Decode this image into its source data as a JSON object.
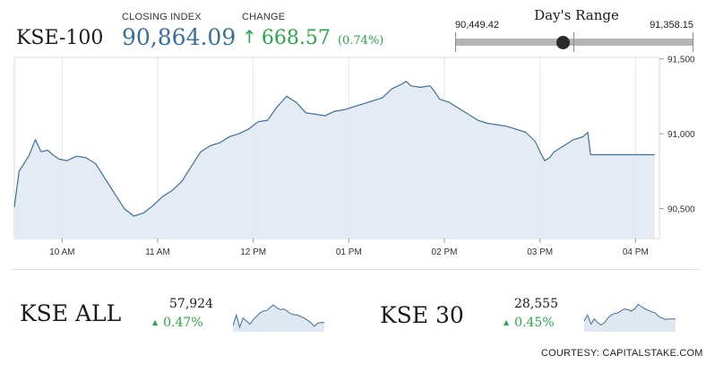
{
  "header": {
    "index_name": "KSE-100",
    "closing_label": "CLOSING INDEX",
    "closing_value": "90,864.09",
    "change_label": "CHANGE",
    "change_arrow": "↑",
    "change_value": "668.57",
    "change_pct": "(0.74%)"
  },
  "days_range": {
    "title": "Day's Range",
    "low_label": "90,449.42",
    "high_label": "91,358.15",
    "low": 90449.42,
    "high": 91358.15,
    "current": 90864.09
  },
  "colors": {
    "line": "#3f6f98",
    "fill": "#dfe8f1",
    "up": "#2aa548",
    "index_blue": "#3a6f9c"
  },
  "chart_data": [
    {
      "type": "area",
      "title": "KSE-100",
      "xlabel": "",
      "ylabel": "",
      "x_tick_labels": [
        "10 AM",
        "11 AM",
        "12 PM",
        "01 PM",
        "02 PM",
        "03 PM",
        "04 PM"
      ],
      "y_tick_labels": [
        "91,500",
        "91,000",
        "90,500"
      ],
      "y_ticks": [
        91500,
        91000,
        90500
      ],
      "ylim": [
        90300,
        91510
      ],
      "xlim_hours": [
        9.5,
        16.25
      ],
      "grid": "vertical",
      "series": [
        {
          "points": [
            [
              9.5,
              90510
            ],
            [
              9.55,
              90750
            ],
            [
              9.6,
              90800
            ],
            [
              9.65,
              90850
            ],
            [
              9.72,
              90960
            ],
            [
              9.78,
              90880
            ],
            [
              9.85,
              90890
            ],
            [
              9.9,
              90860
            ],
            [
              9.97,
              90830
            ],
            [
              10.05,
              90820
            ],
            [
              10.15,
              90850
            ],
            [
              10.25,
              90840
            ],
            [
              10.35,
              90800
            ],
            [
              10.45,
              90700
            ],
            [
              10.55,
              90600
            ],
            [
              10.65,
              90500
            ],
            [
              10.75,
              90450
            ],
            [
              10.85,
              90470
            ],
            [
              10.95,
              90520
            ],
            [
              11.05,
              90580
            ],
            [
              11.15,
              90620
            ],
            [
              11.25,
              90680
            ],
            [
              11.35,
              90780
            ],
            [
              11.45,
              90880
            ],
            [
              11.55,
              90920
            ],
            [
              11.65,
              90940
            ],
            [
              11.75,
              90980
            ],
            [
              11.85,
              91000
            ],
            [
              11.95,
              91030
            ],
            [
              12.05,
              91080
            ],
            [
              12.15,
              91090
            ],
            [
              12.25,
              91180
            ],
            [
              12.35,
              91250
            ],
            [
              12.45,
              91210
            ],
            [
              12.55,
              91140
            ],
            [
              12.65,
              91130
            ],
            [
              12.75,
              91120
            ],
            [
              12.85,
              91150
            ],
            [
              12.95,
              91160
            ],
            [
              13.05,
              91180
            ],
            [
              13.15,
              91200
            ],
            [
              13.25,
              91220
            ],
            [
              13.35,
              91240
            ],
            [
              13.45,
              91300
            ],
            [
              13.55,
              91330
            ],
            [
              13.6,
              91350
            ],
            [
              13.65,
              91320
            ],
            [
              13.75,
              91310
            ],
            [
              13.85,
              91320
            ],
            [
              13.9,
              91280
            ],
            [
              13.95,
              91230
            ],
            [
              14.05,
              91210
            ],
            [
              14.15,
              91170
            ],
            [
              14.25,
              91130
            ],
            [
              14.35,
              91090
            ],
            [
              14.45,
              91070
            ],
            [
              14.55,
              91060
            ],
            [
              14.65,
              91050
            ],
            [
              14.75,
              91030
            ],
            [
              14.85,
              91010
            ],
            [
              14.95,
              90950
            ],
            [
              15.0,
              90880
            ],
            [
              15.05,
              90820
            ],
            [
              15.1,
              90840
            ],
            [
              15.15,
              90880
            ],
            [
              15.25,
              90920
            ],
            [
              15.35,
              90960
            ],
            [
              15.45,
              90980
            ],
            [
              15.5,
              91010
            ],
            [
              15.53,
              90860
            ],
            [
              16.2,
              90860
            ]
          ]
        }
      ]
    },
    {
      "type": "area",
      "title": "KSE ALL",
      "value": "57,924",
      "change": "0.47%",
      "series": [
        {
          "values": [
            0.2,
            0.55,
            0.15,
            0.45,
            0.35,
            0.25,
            0.4,
            0.5,
            0.62,
            0.68,
            0.7,
            0.8,
            0.88,
            0.78,
            0.72,
            0.75,
            0.68,
            0.6,
            0.56,
            0.55,
            0.5,
            0.45,
            0.38,
            0.3,
            0.18,
            0.28,
            0.3,
            0.3
          ]
        }
      ]
    },
    {
      "type": "area",
      "title": "KSE 30",
      "value": "28,555",
      "change": "0.45%",
      "series": [
        {
          "values": [
            0.35,
            0.55,
            0.25,
            0.42,
            0.3,
            0.22,
            0.3,
            0.45,
            0.55,
            0.6,
            0.62,
            0.7,
            0.75,
            0.72,
            0.68,
            0.76,
            0.9,
            0.82,
            0.75,
            0.7,
            0.65,
            0.62,
            0.5,
            0.45,
            0.4,
            0.42,
            0.42,
            0.42
          ]
        }
      ]
    }
  ],
  "mini": [
    {
      "name": "KSE ALL",
      "value": "57,924",
      "arrow": "▲",
      "change": "0.47%"
    },
    {
      "name": "KSE 30",
      "value": "28,555",
      "arrow": "▲",
      "change": "0.45%"
    }
  ],
  "footer": {
    "courtesy": "COURTESY: CAPITALSTAKE.COM"
  }
}
